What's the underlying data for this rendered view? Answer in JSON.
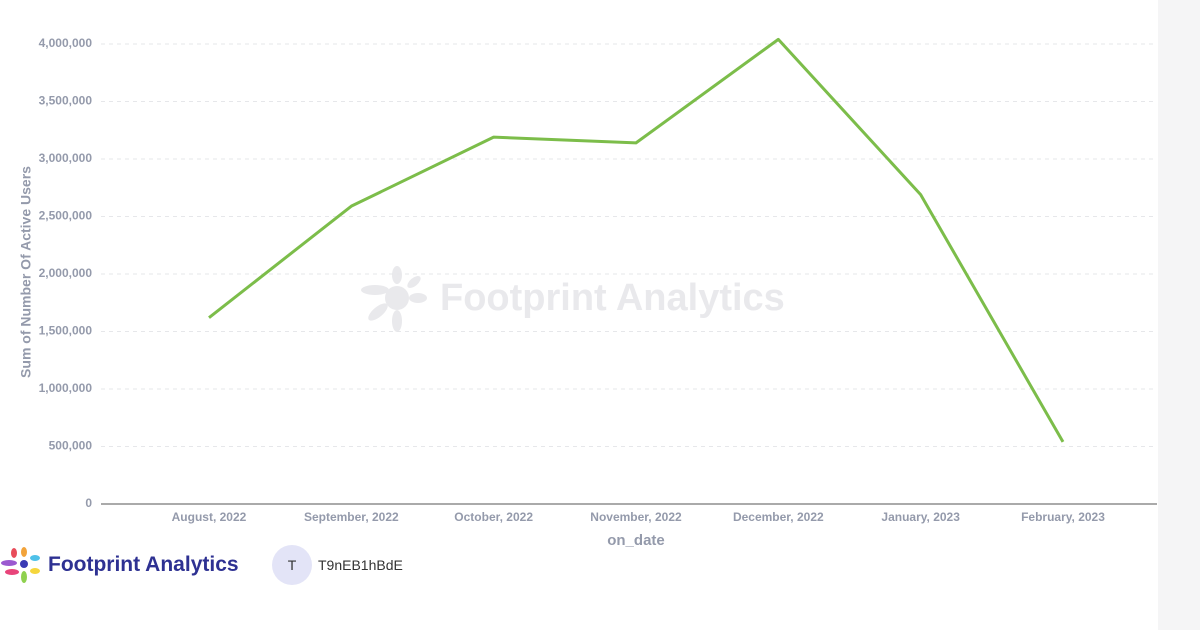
{
  "chart_data": {
    "type": "line",
    "y_label": "Sum of Number Of Active Users",
    "x_label": "on_date",
    "watermark": "Footprint Analytics",
    "categories": [
      "August, 2022",
      "September, 2022",
      "October, 2022",
      "November, 2022",
      "December, 2022",
      "January, 2023",
      "February, 2023"
    ],
    "series": [
      {
        "name": "Sum of Number Of Active Users",
        "color": "#7cbd4a",
        "values": [
          1620000,
          2590000,
          3190000,
          3140000,
          4040000,
          2690000,
          540000
        ]
      }
    ],
    "ylim": [
      0,
      4000000
    ],
    "yticks": [
      0,
      {
        "value": 500000,
        "label": "500,000"
      },
      {
        "value": 1000000,
        "label": "1,000,000"
      },
      {
        "value": 1500000,
        "label": "1,500,000"
      },
      {
        "value": 2000000,
        "label": "2,000,000"
      },
      {
        "value": 2500000,
        "label": "2,500,000"
      },
      {
        "value": 3000000,
        "label": "3,000,000"
      },
      {
        "value": 3500000,
        "label": "3,500,000"
      },
      {
        "value": 4000000,
        "label": "4,000,000"
      }
    ],
    "grid": true
  },
  "footer": {
    "brand": "Footprint Analytics",
    "avatar": "T",
    "user": "T9nEB1hBdE"
  }
}
